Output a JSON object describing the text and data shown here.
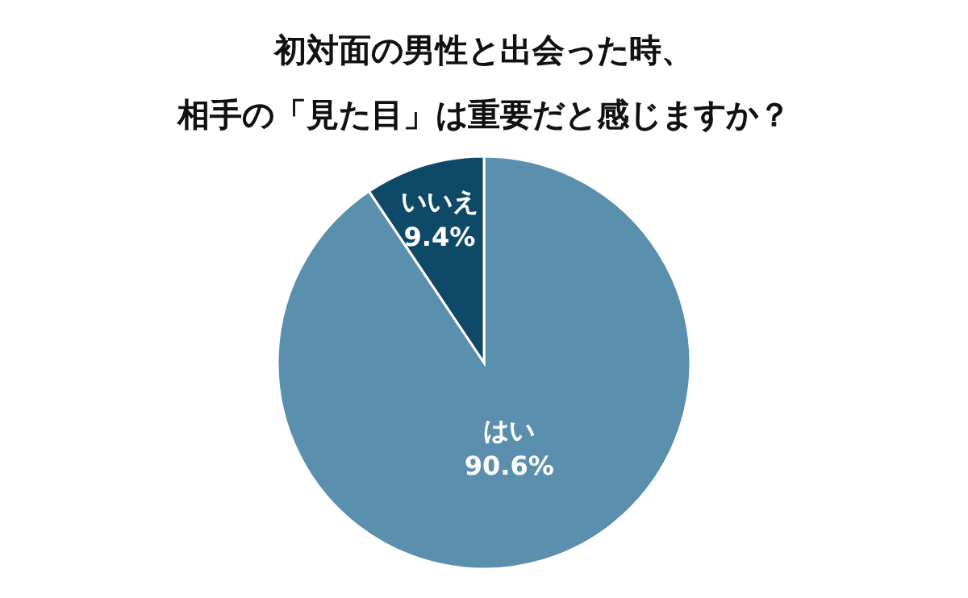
{
  "chart_data": {
    "type": "pie",
    "title": "初対面の男性と出会った時、相手の「見た目」は重要だと感じますか？",
    "categories": [
      "はい",
      "いいえ"
    ],
    "values": [
      90.6,
      9.4
    ],
    "value_labels": [
      "90.6%",
      "9.4%"
    ],
    "colors": [
      "#5a8fae",
      "#0e4967"
    ]
  }
}
